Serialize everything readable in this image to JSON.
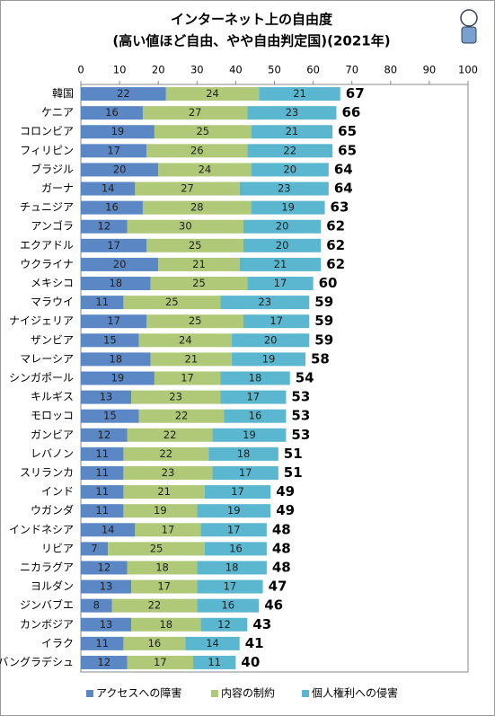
{
  "chart_data": {
    "type": "stacked-barh",
    "title": "インターネット上の自由度",
    "subtitle": "(高い値ほど自由、やや自由判定国)(2021年)",
    "categories": [
      "韓国",
      "ケニア",
      "コロンビア",
      "フィリピン",
      "ブラジル",
      "ガーナ",
      "チュニジア",
      "アンゴラ",
      "エクアドル",
      "ウクライナ",
      "メキシコ",
      "マラウイ",
      "ナイジェリア",
      "ザンビア",
      "マレーシア",
      "シンガポール",
      "キルギス",
      "モロッコ",
      "ガンビア",
      "レバノン",
      "スリランカ",
      "インド",
      "ウガンダ",
      "インドネシア",
      "リビア",
      "ニカラグア",
      "ヨルダン",
      "ジンバブエ",
      "カンボジア",
      "イラク",
      "バングラデシュ"
    ],
    "series": [
      {
        "name": "アクセスへの障害",
        "color": "#5b87c4",
        "values": [
          22,
          16,
          19,
          17,
          20,
          14,
          16,
          12,
          17,
          20,
          18,
          11,
          17,
          15,
          18,
          19,
          13,
          15,
          12,
          11,
          11,
          11,
          11,
          14,
          7,
          12,
          13,
          8,
          13,
          11,
          12
        ]
      },
      {
        "name": "内容の制約",
        "color": "#afc978",
        "values": [
          24,
          27,
          25,
          26,
          24,
          27,
          28,
          30,
          25,
          21,
          25,
          25,
          25,
          24,
          21,
          17,
          23,
          22,
          22,
          22,
          23,
          21,
          19,
          17,
          25,
          18,
          17,
          22,
          18,
          16,
          17
        ]
      },
      {
        "name": "個人権利への侵害",
        "color": "#5bb6cf",
        "values": [
          21,
          23,
          21,
          22,
          20,
          23,
          19,
          20,
          20,
          21,
          17,
          23,
          17,
          20,
          19,
          18,
          17,
          16,
          19,
          18,
          17,
          17,
          19,
          17,
          16,
          18,
          17,
          16,
          12,
          14,
          11
        ]
      }
    ],
    "totals": [
      67,
      66,
      65,
      65,
      64,
      64,
      63,
      62,
      62,
      62,
      60,
      59,
      59,
      59,
      58,
      54,
      53,
      53,
      53,
      51,
      51,
      49,
      49,
      48,
      48,
      48,
      47,
      46,
      43,
      41,
      40
    ],
    "xlim": [
      0,
      100
    ],
    "xticks": [
      0,
      10,
      20,
      30,
      40,
      50,
      60,
      70,
      80,
      90,
      100
    ],
    "grid": false,
    "legend": "bottom"
  }
}
